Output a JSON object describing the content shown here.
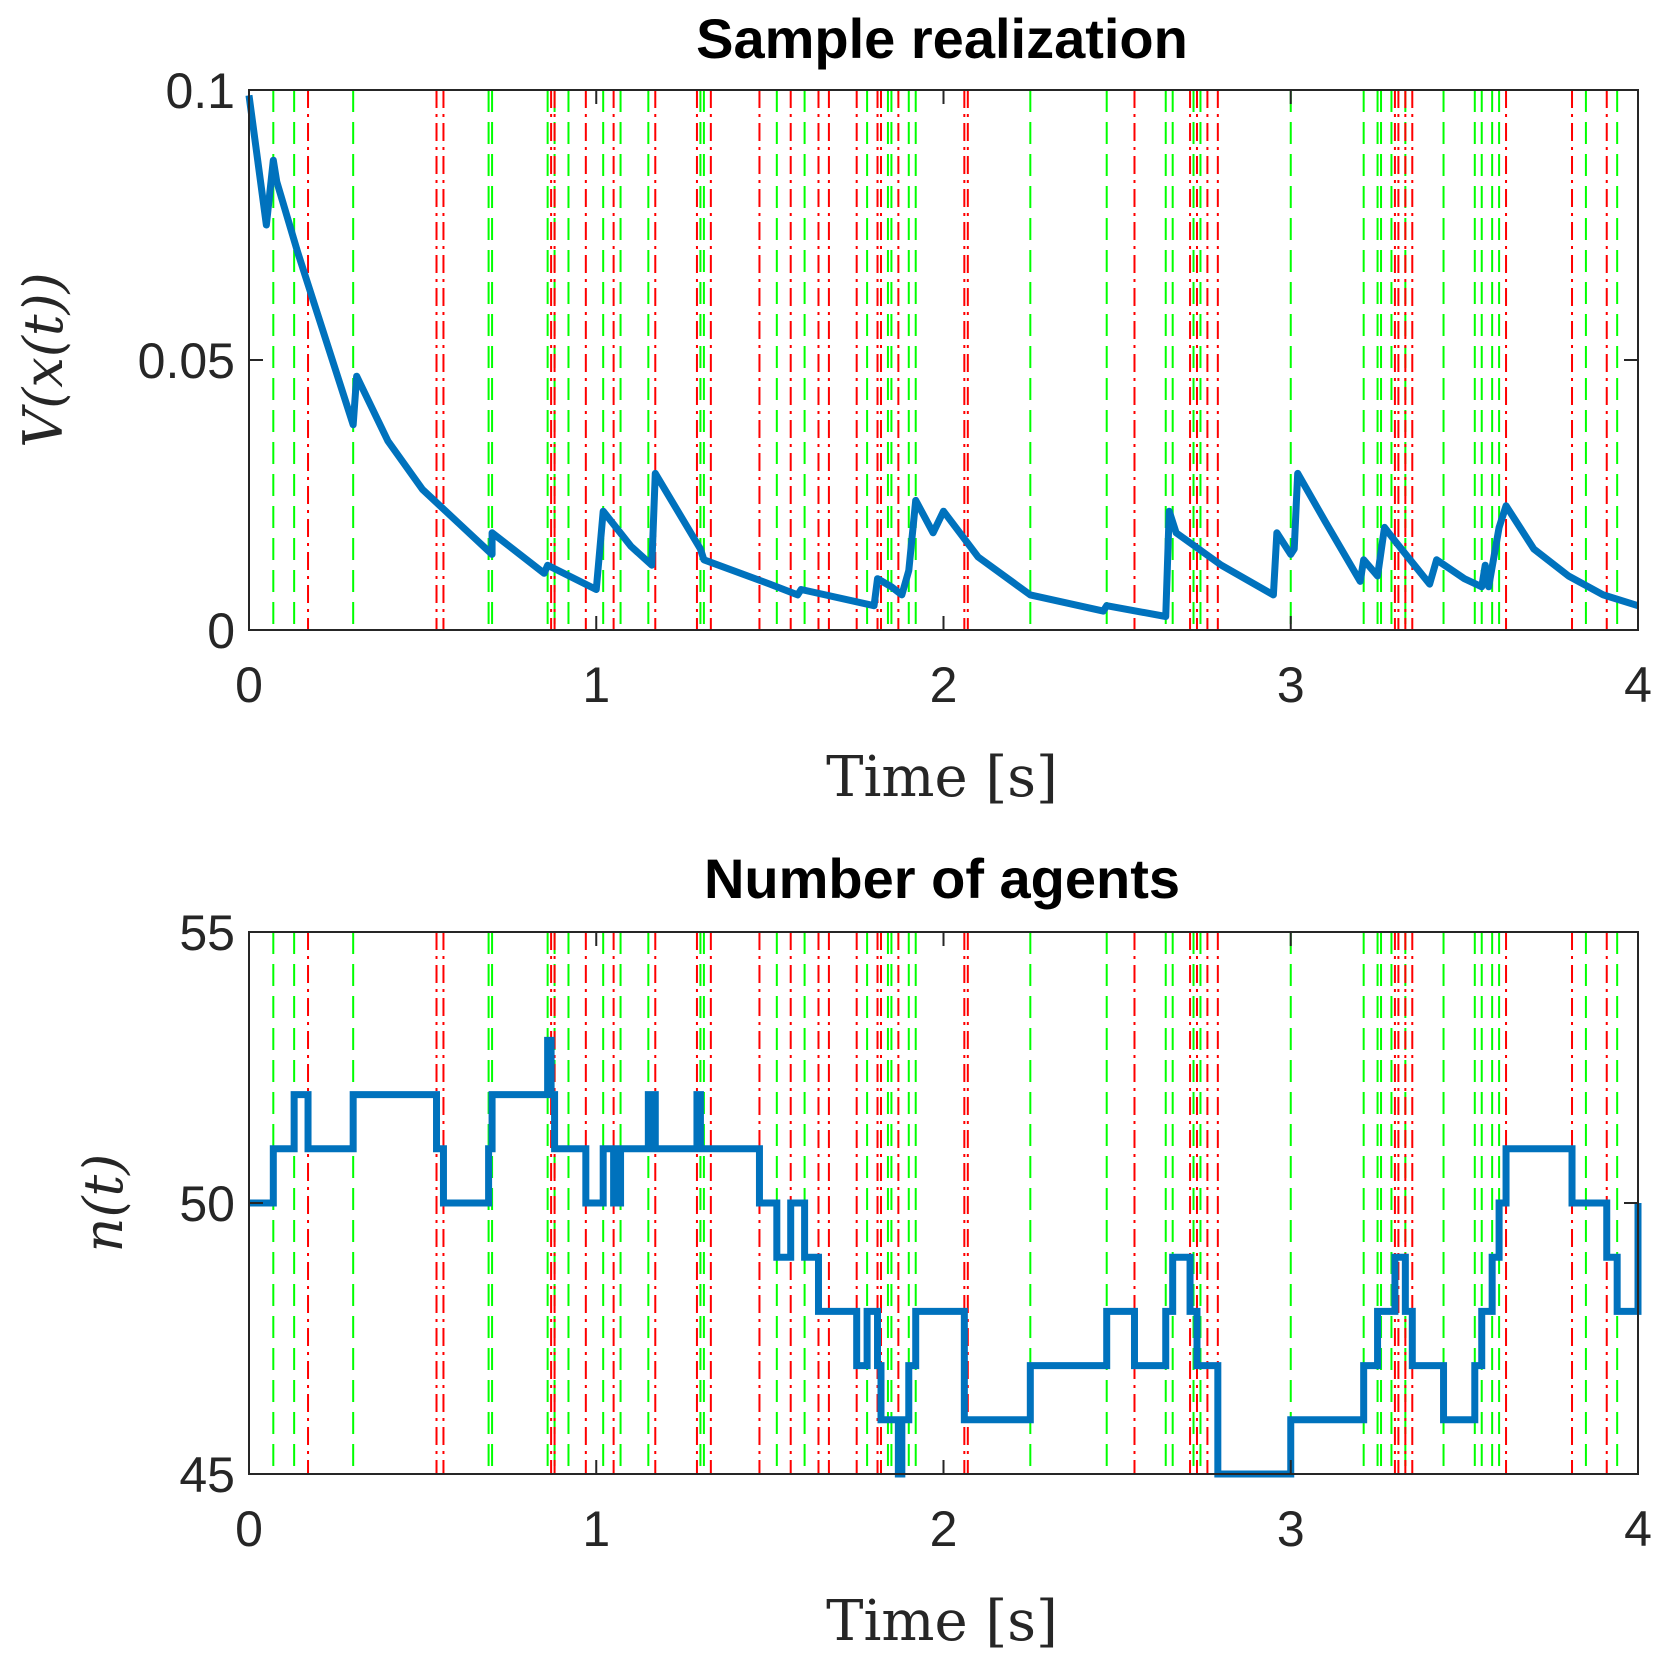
{
  "colors": {
    "line": "#0072BD",
    "arrival": "#00FF00",
    "departure": "#FF0000",
    "axis": "#262626"
  },
  "chart_data": [
    {
      "type": "line",
      "title": "Sample realization",
      "xlabel": "Time [s]",
      "ylabel": "V(x(t))",
      "xlim": [
        0,
        4
      ],
      "ylim": [
        0,
        0.1
      ],
      "xticks": [
        0,
        1,
        2,
        3,
        4
      ],
      "xtick_labels": [
        "0",
        "1",
        "2",
        "3",
        "4"
      ],
      "yticks": [
        0,
        0.05,
        0.1
      ],
      "ytick_labels": [
        "0",
        "0.05",
        "0.1"
      ],
      "series": [
        {
          "name": "V(x(t))",
          "x": [
            0,
            0.05,
            0.07,
            0.08,
            0.14,
            0.2,
            0.3,
            0.31,
            0.4,
            0.5,
            0.6,
            0.7,
            0.7,
            0.85,
            0.86,
            1.0,
            1.02,
            1.1,
            1.16,
            1.17,
            1.3,
            1.31,
            1.5,
            1.58,
            1.59,
            1.8,
            1.81,
            1.85,
            1.88,
            1.9,
            1.92,
            1.97,
            2.0,
            2.1,
            2.25,
            2.46,
            2.47,
            2.64,
            2.65,
            2.67,
            2.8,
            2.95,
            2.96,
            3.0,
            3.01,
            3.02,
            3.1,
            3.2,
            3.21,
            3.25,
            3.27,
            3.3,
            3.35,
            3.4,
            3.42,
            3.5,
            3.55,
            3.56,
            3.57,
            3.6,
            3.62,
            3.7,
            3.8,
            3.9,
            4.0
          ],
          "values": [
            0.099,
            0.075,
            0.087,
            0.083,
            0.07,
            0.058,
            0.038,
            0.047,
            0.035,
            0.026,
            0.02,
            0.014,
            0.018,
            0.0105,
            0.012,
            0.0075,
            0.022,
            0.0155,
            0.012,
            0.029,
            0.015,
            0.013,
            0.0085,
            0.0065,
            0.0075,
            0.0045,
            0.0095,
            0.008,
            0.0065,
            0.011,
            0.024,
            0.018,
            0.022,
            0.0135,
            0.0065,
            0.0035,
            0.0045,
            0.0025,
            0.022,
            0.018,
            0.012,
            0.0065,
            0.018,
            0.014,
            0.015,
            0.029,
            0.02,
            0.009,
            0.013,
            0.01,
            0.019,
            0.0165,
            0.0125,
            0.0085,
            0.013,
            0.0095,
            0.008,
            0.012,
            0.008,
            0.019,
            0.023,
            0.015,
            0.01,
            0.0065,
            0.0045
          ]
        }
      ],
      "events": {
        "arrivals": [
          0.07,
          0.13,
          0.3,
          0.69,
          0.7,
          0.86,
          0.88,
          0.92,
          1.02,
          1.07,
          1.15,
          1.3,
          1.31,
          1.52,
          1.6,
          1.78,
          1.84,
          1.85,
          1.9,
          1.92,
          2.25,
          2.47,
          2.64,
          2.66,
          2.72,
          2.74,
          3.0,
          3.21,
          3.25,
          3.26,
          3.29,
          3.33,
          3.44,
          3.53,
          3.55,
          3.58,
          3.6,
          3.85,
          3.94,
          4.0
        ],
        "departures": [
          0.17,
          0.54,
          0.56,
          0.87,
          0.88,
          0.97,
          1.05,
          1.17,
          1.29,
          1.33,
          1.47,
          1.56,
          1.64,
          1.67,
          1.75,
          1.81,
          1.82,
          1.87,
          2.06,
          2.07,
          2.55,
          2.71,
          2.73,
          2.76,
          2.79,
          3.3,
          3.31,
          3.33,
          3.35,
          3.62,
          3.81,
          3.91
        ]
      }
    },
    {
      "type": "line",
      "title": "Number of agents",
      "xlabel": "Time [s]",
      "ylabel": "n(t)",
      "xlim": [
        0,
        4
      ],
      "ylim": [
        45,
        55
      ],
      "xticks": [
        0,
        1,
        2,
        3,
        4
      ],
      "xtick_labels": [
        "0",
        "1",
        "2",
        "3",
        "4"
      ],
      "yticks": [
        45,
        50,
        55
      ],
      "ytick_labels": [
        "45",
        "50",
        "55"
      ],
      "series": [
        {
          "name": "n(t)",
          "step": true,
          "x": [
            0,
            0.07,
            0.13,
            0.17,
            0.3,
            0.54,
            0.56,
            0.69,
            0.7,
            0.86,
            0.87,
            0.88,
            0.97,
            1.02,
            1.05,
            1.07,
            1.15,
            1.17,
            1.29,
            1.3,
            1.33,
            1.47,
            1.52,
            1.56,
            1.6,
            1.64,
            1.67,
            1.75,
            1.78,
            1.81,
            1.82,
            1.84,
            1.87,
            1.88,
            1.9,
            1.92,
            2.06,
            2.25,
            2.47,
            2.55,
            2.64,
            2.66,
            2.71,
            2.72,
            2.73,
            2.74,
            2.79,
            3.0,
            3.21,
            3.25,
            3.3,
            3.33,
            3.35,
            3.44,
            3.53,
            3.55,
            3.58,
            3.6,
            3.62,
            3.81,
            3.91,
            3.94,
            4.0
          ],
          "values": [
            50,
            51,
            52,
            51,
            52,
            51,
            50,
            51,
            52,
            53,
            52,
            51,
            50,
            51,
            50,
            51,
            52,
            51,
            52,
            51,
            51,
            50,
            49,
            50,
            49,
            48,
            48,
            47,
            48,
            47,
            46,
            46,
            45,
            46,
            47,
            48,
            46,
            47,
            48,
            47,
            48,
            49,
            48,
            48,
            47,
            47,
            45,
            46,
            47,
            48,
            49,
            48,
            47,
            46,
            47,
            48,
            49,
            50,
            51,
            50,
            49,
            48,
            50
          ]
        }
      ],
      "events": {
        "arrivals": [
          0.07,
          0.13,
          0.3,
          0.69,
          0.7,
          0.86,
          0.88,
          0.92,
          1.02,
          1.07,
          1.15,
          1.3,
          1.31,
          1.52,
          1.6,
          1.78,
          1.84,
          1.85,
          1.9,
          1.92,
          2.25,
          2.47,
          2.64,
          2.66,
          2.72,
          2.74,
          3.0,
          3.21,
          3.25,
          3.26,
          3.29,
          3.33,
          3.44,
          3.53,
          3.55,
          3.58,
          3.6,
          3.85,
          3.94,
          4.0
        ],
        "departures": [
          0.17,
          0.54,
          0.56,
          0.87,
          0.88,
          0.97,
          1.05,
          1.17,
          1.29,
          1.33,
          1.47,
          1.56,
          1.64,
          1.67,
          1.75,
          1.81,
          1.82,
          1.87,
          2.06,
          2.07,
          2.55,
          2.71,
          2.73,
          2.76,
          2.79,
          3.3,
          3.31,
          3.33,
          3.35,
          3.62,
          3.81,
          3.91
        ]
      }
    }
  ]
}
